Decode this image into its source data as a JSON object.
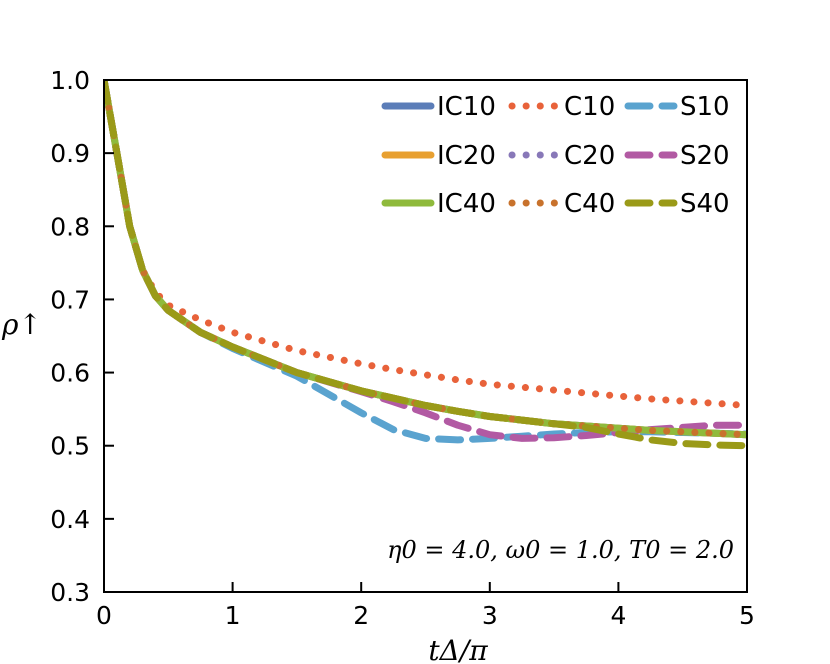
{
  "chart_data": {
    "type": "line",
    "title": "",
    "xlabel": "tΔ/π",
    "ylabel": "ρ↑",
    "xlim": [
      0,
      5
    ],
    "ylim": [
      0.3,
      1.0
    ],
    "xticks": [
      "0",
      "1",
      "2",
      "3",
      "4",
      "5"
    ],
    "yticks": [
      "0.3",
      "0.4",
      "0.5",
      "0.6",
      "0.7",
      "0.8",
      "0.9",
      "1.0"
    ],
    "annotation": "η0 = 4.0, ω0 = 1.0, T0 = 2.0",
    "legend_position": "top-right",
    "x": [
      0,
      0.1,
      0.2,
      0.3,
      0.4,
      0.5,
      0.75,
      1.0,
      1.5,
      2.0,
      2.25,
      2.5,
      2.75,
      3.0,
      3.25,
      3.5,
      3.75,
      4.0,
      4.25,
      4.5,
      4.75,
      5.0
    ],
    "series": [
      {
        "name": "IC10",
        "color": "#5b7db8",
        "style": "solid",
        "values": [
          1.0,
          0.9,
          0.8,
          0.74,
          0.705,
          0.685,
          0.655,
          0.635,
          0.6,
          0.575,
          0.565,
          0.555,
          0.547,
          0.54,
          0.535,
          0.53,
          0.527,
          0.524,
          0.521,
          0.519,
          0.517,
          0.515
        ]
      },
      {
        "name": "C10",
        "color": "#e8623a",
        "style": "dotted",
        "values": [
          1.0,
          0.9,
          0.8,
          0.74,
          0.71,
          0.692,
          0.672,
          0.655,
          0.63,
          0.612,
          0.604,
          0.597,
          0.59,
          0.584,
          0.58,
          0.576,
          0.572,
          0.568,
          0.564,
          0.561,
          0.558,
          0.555
        ]
      },
      {
        "name": "S10",
        "color": "#5aa3cf",
        "style": "dashed",
        "values": [
          1.0,
          0.9,
          0.8,
          0.74,
          0.705,
          0.685,
          0.655,
          0.633,
          0.595,
          0.545,
          0.522,
          0.51,
          0.508,
          0.51,
          0.513,
          0.516,
          0.518,
          0.519,
          0.519,
          0.518,
          0.517,
          0.516
        ]
      },
      {
        "name": "IC20",
        "color": "#e8a030",
        "style": "solid",
        "values": [
          1.0,
          0.9,
          0.8,
          0.74,
          0.705,
          0.685,
          0.655,
          0.635,
          0.6,
          0.575,
          0.565,
          0.555,
          0.547,
          0.54,
          0.535,
          0.53,
          0.527,
          0.524,
          0.521,
          0.519,
          0.517,
          0.515
        ]
      },
      {
        "name": "C20",
        "color": "#8878b8",
        "style": "dotted",
        "values": [
          1.0,
          0.9,
          0.8,
          0.74,
          0.705,
          0.685,
          0.655,
          0.635,
          0.6,
          0.575,
          0.565,
          0.555,
          0.547,
          0.54,
          0.535,
          0.53,
          0.527,
          0.524,
          0.521,
          0.519,
          0.517,
          0.515
        ]
      },
      {
        "name": "S20",
        "color": "#b25aa3",
        "style": "dashed",
        "values": [
          1.0,
          0.9,
          0.8,
          0.74,
          0.705,
          0.685,
          0.655,
          0.635,
          0.6,
          0.574,
          0.56,
          0.545,
          0.528,
          0.515,
          0.51,
          0.511,
          0.514,
          0.518,
          0.522,
          0.525,
          0.528,
          0.528
        ]
      },
      {
        "name": "IC40",
        "color": "#8fba3c",
        "style": "solid",
        "values": [
          1.0,
          0.9,
          0.8,
          0.74,
          0.705,
          0.685,
          0.655,
          0.635,
          0.6,
          0.575,
          0.565,
          0.555,
          0.547,
          0.54,
          0.535,
          0.53,
          0.527,
          0.524,
          0.521,
          0.519,
          0.517,
          0.515
        ]
      },
      {
        "name": "C40",
        "color": "#c8722c",
        "style": "dotted",
        "values": [
          1.0,
          0.9,
          0.8,
          0.74,
          0.705,
          0.685,
          0.655,
          0.635,
          0.6,
          0.575,
          0.565,
          0.555,
          0.547,
          0.54,
          0.535,
          0.53,
          0.527,
          0.524,
          0.521,
          0.519,
          0.517,
          0.515
        ]
      },
      {
        "name": "S40",
        "color": "#9a9a18",
        "style": "dashed",
        "values": [
          1.0,
          0.9,
          0.8,
          0.74,
          0.705,
          0.685,
          0.655,
          0.635,
          0.6,
          0.575,
          0.565,
          0.555,
          0.547,
          0.54,
          0.535,
          0.53,
          0.525,
          0.516,
          0.508,
          0.503,
          0.501,
          0.5
        ]
      }
    ]
  }
}
